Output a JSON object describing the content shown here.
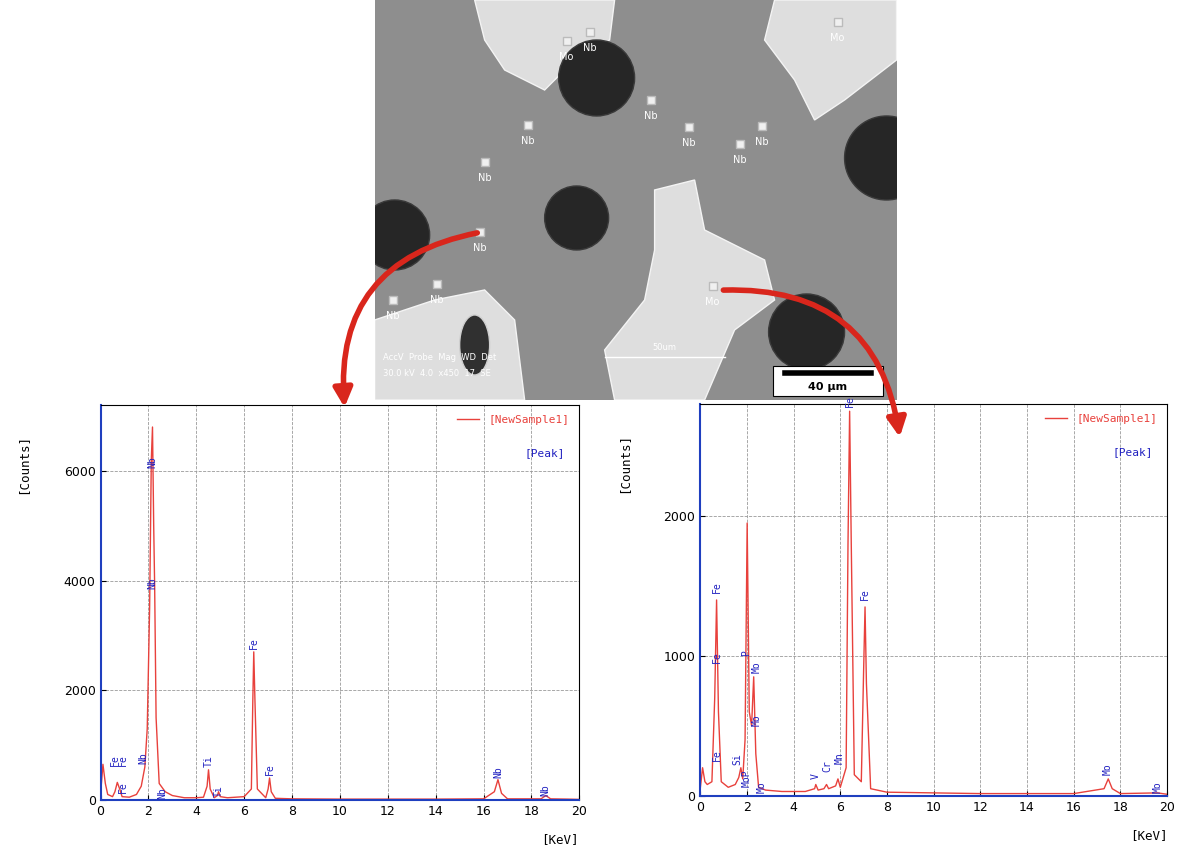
{
  "chart_data": [
    {
      "type": "line",
      "x": [
        0,
        0.1,
        0.2,
        0.3,
        0.5,
        0.6,
        0.7,
        0.8,
        0.9,
        1.2,
        1.5,
        1.7,
        1.85,
        1.95,
        2.05,
        2.12,
        2.17,
        2.22,
        2.26,
        2.32,
        2.45,
        2.7,
        3.0,
        3.5,
        4.0,
        4.3,
        4.45,
        4.51,
        4.58,
        4.75,
        4.88,
        4.93,
        5.0,
        5.3,
        6.0,
        6.3,
        6.36,
        6.4,
        6.45,
        6.55,
        6.9,
        7.0,
        7.06,
        7.13,
        7.3,
        8,
        10,
        12,
        14,
        16,
        16.45,
        16.6,
        16.75,
        17,
        18.4,
        18.6,
        18.8,
        19.5,
        20
      ],
      "series": [
        {
          "name": "[NewSample1]",
          "color": "#e8413c",
          "values": [
            100,
            650,
            300,
            100,
            60,
            150,
            320,
            200,
            60,
            50,
            100,
            250,
            600,
            1300,
            3500,
            6200,
            6800,
            5000,
            3900,
            1500,
            300,
            150,
            80,
            40,
            40,
            50,
            250,
            550,
            200,
            40,
            80,
            150,
            60,
            40,
            60,
            200,
            1800,
            2700,
            1800,
            200,
            40,
            200,
            400,
            150,
            30,
            20,
            15,
            15,
            15,
            20,
            150,
            370,
            120,
            20,
            20,
            80,
            20,
            15,
            10
          ]
        }
      ],
      "xlim": [
        0,
        20
      ],
      "xticks": [
        0,
        2,
        4,
        6,
        8,
        10,
        12,
        14,
        16,
        18,
        20
      ],
      "ylim": [
        0,
        7200
      ],
      "yticks": [
        0,
        2000,
        4000,
        6000
      ],
      "x_label": "[KeV]",
      "y_label": "[Counts]",
      "grid": true,
      "legend": "upper right",
      "annotations": [
        "[Peak]"
      ],
      "peak_labels": [
        {
          "x": 0.6,
          "y": 620,
          "text": "Fe"
        },
        {
          "x": 0.95,
          "y": 620,
          "text": "Fe"
        },
        {
          "x": 0.95,
          "y": 120,
          "text": "Fe"
        },
        {
          "x": 2.17,
          "y": 6050,
          "text": "Nb"
        },
        {
          "x": 2.17,
          "y": 3850,
          "text": "Nb"
        },
        {
          "x": 1.8,
          "y": 650,
          "text": "Nb"
        },
        {
          "x": 2.6,
          "y": 20,
          "text": "Nb"
        },
        {
          "x": 4.5,
          "y": 600,
          "text": "Ti"
        },
        {
          "x": 4.93,
          "y": 50,
          "text": "Ti"
        },
        {
          "x": 6.4,
          "y": 2750,
          "text": "Fe"
        },
        {
          "x": 7.06,
          "y": 450,
          "text": "Fe"
        },
        {
          "x": 16.6,
          "y": 400,
          "text": "Nb"
        },
        {
          "x": 18.6,
          "y": 80,
          "text": "Nb"
        }
      ]
    },
    {
      "type": "line",
      "x": [
        0,
        0.1,
        0.2,
        0.3,
        0.5,
        0.62,
        0.7,
        0.78,
        0.9,
        1.2,
        1.5,
        1.65,
        1.74,
        1.82,
        1.92,
        2.01,
        2.1,
        2.2,
        2.29,
        2.38,
        2.5,
        2.8,
        3.5,
        4.5,
        4.9,
        4.95,
        5.05,
        5.3,
        5.41,
        5.5,
        5.8,
        5.9,
        6.0,
        6.25,
        6.33,
        6.4,
        6.47,
        6.6,
        6.9,
        7.0,
        7.06,
        7.12,
        7.3,
        8,
        10,
        12,
        14,
        16,
        17.3,
        17.48,
        17.65,
        18,
        19.6,
        20
      ],
      "series": [
        {
          "name": "[NewSample1]",
          "color": "#e8413c",
          "values": [
            50,
            200,
            100,
            80,
            100,
            700,
            1400,
            600,
            100,
            60,
            80,
            130,
            200,
            120,
            400,
            1950,
            600,
            500,
            850,
            300,
            60,
            40,
            30,
            30,
            50,
            80,
            40,
            50,
            80,
            50,
            70,
            120,
            60,
            200,
            1800,
            2750,
            1800,
            150,
            100,
            900,
            1350,
            800,
            50,
            25,
            20,
            15,
            15,
            15,
            50,
            120,
            50,
            15,
            20,
            10
          ]
        }
      ],
      "xlim": [
        0,
        20
      ],
      "xticks": [
        0,
        2,
        4,
        6,
        8,
        10,
        12,
        14,
        16,
        18,
        20
      ],
      "ylim": [
        0,
        2800
      ],
      "yticks": [
        0,
        1000,
        2000
      ],
      "x_label": "[KeV]",
      "y_label": "[Counts]",
      "grid": true,
      "legend": "upper right",
      "annotations": [
        "[Peak]"
      ],
      "peak_labels": [
        {
          "x": 0.72,
          "y": 1450,
          "text": "Fe"
        },
        {
          "x": 0.72,
          "y": 950,
          "text": "Fe"
        },
        {
          "x": 0.72,
          "y": 250,
          "text": "Fe"
        },
        {
          "x": 1.6,
          "y": 220,
          "text": "Si"
        },
        {
          "x": 1.98,
          "y": 1000,
          "text": "P"
        },
        {
          "x": 1.98,
          "y": 60,
          "text": "MoP"
        },
        {
          "x": 2.4,
          "y": 880,
          "text": "Mo"
        },
        {
          "x": 2.4,
          "y": 500,
          "text": "Mo"
        },
        {
          "x": 2.65,
          "y": 20,
          "text": "Mo"
        },
        {
          "x": 4.95,
          "y": 120,
          "text": "V"
        },
        {
          "x": 5.45,
          "y": 170,
          "text": "Cr"
        },
        {
          "x": 5.95,
          "y": 230,
          "text": "Mn"
        },
        {
          "x": 6.4,
          "y": 2780,
          "text": "Fe"
        },
        {
          "x": 7.06,
          "y": 1400,
          "text": "Fe"
        },
        {
          "x": 17.45,
          "y": 150,
          "text": "Mo"
        },
        {
          "x": 19.6,
          "y": 20,
          "text": "Mo"
        }
      ]
    }
  ],
  "micrograph": {
    "phase_labels": [
      "Mo",
      "Nb",
      "Mo",
      "Nb",
      "Nb",
      "Nb",
      "Nb",
      "Nb",
      "Nb",
      "Nb",
      "Nb",
      "Nb",
      "Mo"
    ],
    "scale_bar": "40 µm",
    "info_header": "AccV  Probe  Mag  WD  Det",
    "info_values": "30.0 kV  4.0  x450  17  SE",
    "marker_label": "50um"
  }
}
